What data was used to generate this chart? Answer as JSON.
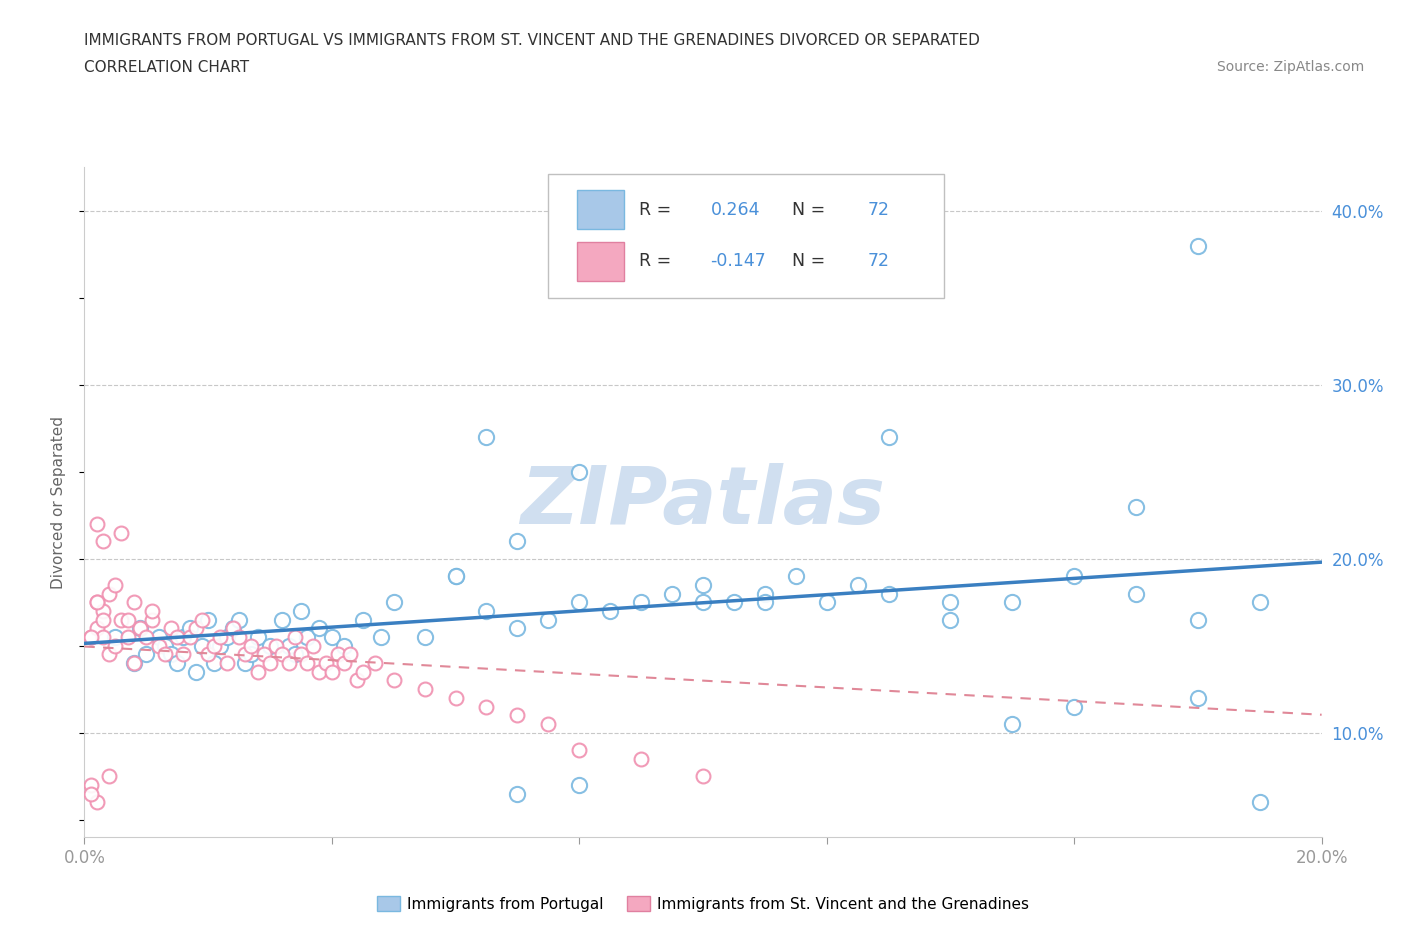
{
  "title_line1": "IMMIGRANTS FROM PORTUGAL VS IMMIGRANTS FROM ST. VINCENT AND THE GRENADINES DIVORCED OR SEPARATED",
  "title_line2": "CORRELATION CHART",
  "source_text": "Source: ZipAtlas.com",
  "ylabel": "Divorced or Separated",
  "x_min": 0.0,
  "x_max": 0.2,
  "y_min": 0.04,
  "y_max": 0.425,
  "x_ticks": [
    0.0,
    0.04,
    0.08,
    0.12,
    0.16,
    0.2
  ],
  "y_ticks_right": [
    0.1,
    0.2,
    0.3,
    0.4
  ],
  "y_tick_labels_right": [
    "10.0%",
    "20.0%",
    "30.0%",
    "40.0%"
  ],
  "R_blue": 0.264,
  "N_blue": 72,
  "R_pink": -0.147,
  "N_pink": 72,
  "color_blue": "#a8c8e8",
  "color_pink": "#f4a8c0",
  "line_blue": "#3a7fc1",
  "scatter_blue_edge": "#7ab8e0",
  "scatter_pink_edge": "#f090b0",
  "watermark": "ZIPatlas",
  "watermark_color": "#d0dff0",
  "blue_x": [
    0.005,
    0.008,
    0.009,
    0.01,
    0.012,
    0.013,
    0.014,
    0.015,
    0.016,
    0.017,
    0.018,
    0.019,
    0.02,
    0.021,
    0.022,
    0.023,
    0.024,
    0.025,
    0.026,
    0.027,
    0.028,
    0.03,
    0.032,
    0.033,
    0.034,
    0.035,
    0.036,
    0.038,
    0.04,
    0.042,
    0.045,
    0.048,
    0.05,
    0.055,
    0.06,
    0.065,
    0.07,
    0.075,
    0.08,
    0.085,
    0.09,
    0.095,
    0.1,
    0.105,
    0.11,
    0.115,
    0.12,
    0.125,
    0.13,
    0.14,
    0.15,
    0.16,
    0.17,
    0.18,
    0.19,
    0.13,
    0.06,
    0.065,
    0.07,
    0.08,
    0.09,
    0.1,
    0.11,
    0.07,
    0.08,
    0.17,
    0.18,
    0.14,
    0.15,
    0.16,
    0.18,
    0.19
  ],
  "blue_y": [
    0.155,
    0.14,
    0.16,
    0.145,
    0.155,
    0.15,
    0.145,
    0.14,
    0.155,
    0.16,
    0.135,
    0.15,
    0.165,
    0.14,
    0.15,
    0.155,
    0.16,
    0.165,
    0.14,
    0.145,
    0.155,
    0.15,
    0.165,
    0.15,
    0.145,
    0.17,
    0.155,
    0.16,
    0.155,
    0.15,
    0.165,
    0.155,
    0.175,
    0.155,
    0.19,
    0.17,
    0.16,
    0.165,
    0.175,
    0.17,
    0.175,
    0.18,
    0.185,
    0.175,
    0.18,
    0.19,
    0.175,
    0.185,
    0.18,
    0.165,
    0.175,
    0.19,
    0.18,
    0.165,
    0.175,
    0.27,
    0.19,
    0.27,
    0.21,
    0.25,
    0.36,
    0.175,
    0.175,
    0.065,
    0.07,
    0.23,
    0.12,
    0.175,
    0.105,
    0.115,
    0.38,
    0.06
  ],
  "pink_x": [
    0.001,
    0.002,
    0.003,
    0.004,
    0.005,
    0.006,
    0.007,
    0.008,
    0.009,
    0.01,
    0.011,
    0.012,
    0.013,
    0.014,
    0.015,
    0.016,
    0.017,
    0.018,
    0.019,
    0.02,
    0.021,
    0.022,
    0.023,
    0.024,
    0.025,
    0.026,
    0.027,
    0.028,
    0.029,
    0.03,
    0.031,
    0.032,
    0.033,
    0.034,
    0.035,
    0.036,
    0.037,
    0.038,
    0.039,
    0.04,
    0.041,
    0.042,
    0.043,
    0.044,
    0.045,
    0.047,
    0.05,
    0.055,
    0.06,
    0.065,
    0.07,
    0.075,
    0.08,
    0.09,
    0.1,
    0.011,
    0.007,
    0.008,
    0.003,
    0.002,
    0.002,
    0.006,
    0.004,
    0.005,
    0.003,
    0.004,
    0.002,
    0.003,
    0.001,
    0.002,
    0.001,
    0.001
  ],
  "pink_y": [
    0.155,
    0.16,
    0.155,
    0.145,
    0.15,
    0.165,
    0.155,
    0.14,
    0.16,
    0.155,
    0.165,
    0.15,
    0.145,
    0.16,
    0.155,
    0.145,
    0.155,
    0.16,
    0.165,
    0.145,
    0.15,
    0.155,
    0.14,
    0.16,
    0.155,
    0.145,
    0.15,
    0.135,
    0.145,
    0.14,
    0.15,
    0.145,
    0.14,
    0.155,
    0.145,
    0.14,
    0.15,
    0.135,
    0.14,
    0.135,
    0.145,
    0.14,
    0.145,
    0.13,
    0.135,
    0.14,
    0.13,
    0.125,
    0.12,
    0.115,
    0.11,
    0.105,
    0.09,
    0.085,
    0.075,
    0.17,
    0.165,
    0.175,
    0.21,
    0.22,
    0.175,
    0.215,
    0.18,
    0.185,
    0.17,
    0.075,
    0.175,
    0.165,
    0.155,
    0.06,
    0.07,
    0.065
  ]
}
